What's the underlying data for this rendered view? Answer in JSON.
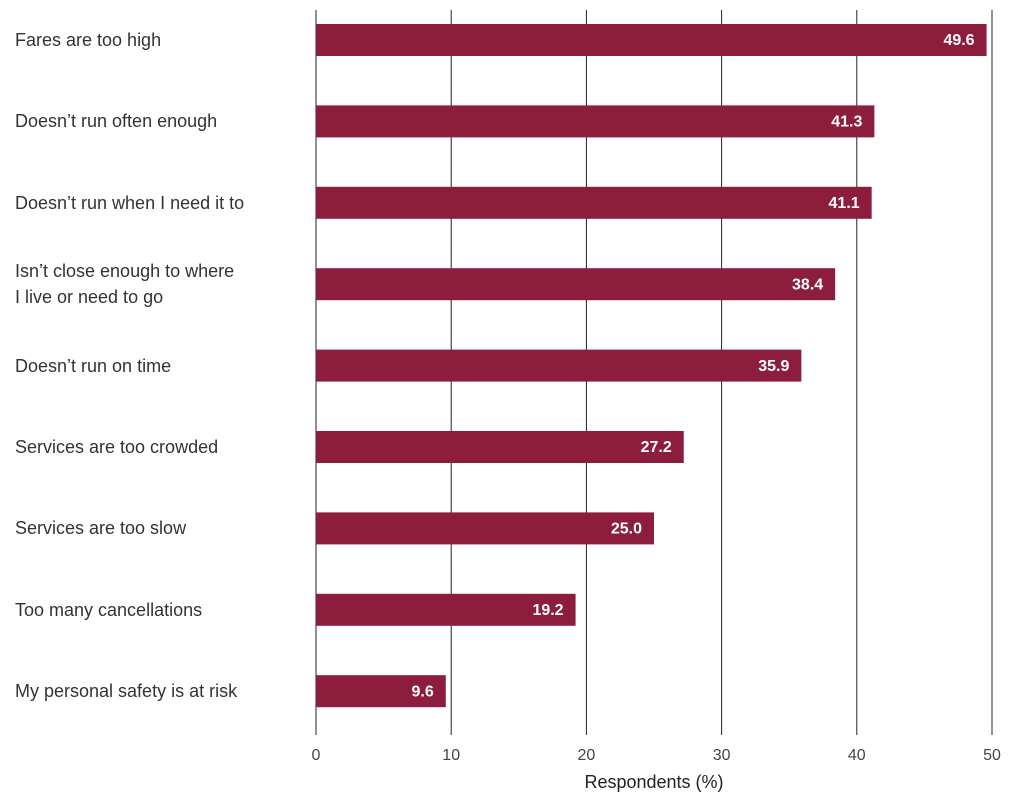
{
  "chart_data": {
    "type": "bar",
    "orientation": "horizontal",
    "categories": [
      "Fares are too high",
      "Doesn’t run often enough",
      "Doesn’t run when I need it to",
      "Isn’t close enough to where\nI live or need to go",
      "Doesn’t run on time",
      "Services are too crowded",
      "Services are too slow",
      "Too many cancellations",
      "My personal safety is at risk"
    ],
    "values": [
      49.6,
      41.3,
      41.1,
      38.4,
      35.9,
      27.2,
      25,
      19.2,
      9.6
    ],
    "value_labels": [
      "49.6",
      "41.3",
      "41.1",
      "38.4",
      "35.9",
      "27.2",
      "25.0",
      "19.2",
      "9.6"
    ],
    "color": "#8c1d3d",
    "xlim": [
      0,
      50
    ],
    "xticks": [
      0,
      10,
      20,
      30,
      40,
      50
    ],
    "x_label": "Respondents (%)",
    "grid": true
  }
}
